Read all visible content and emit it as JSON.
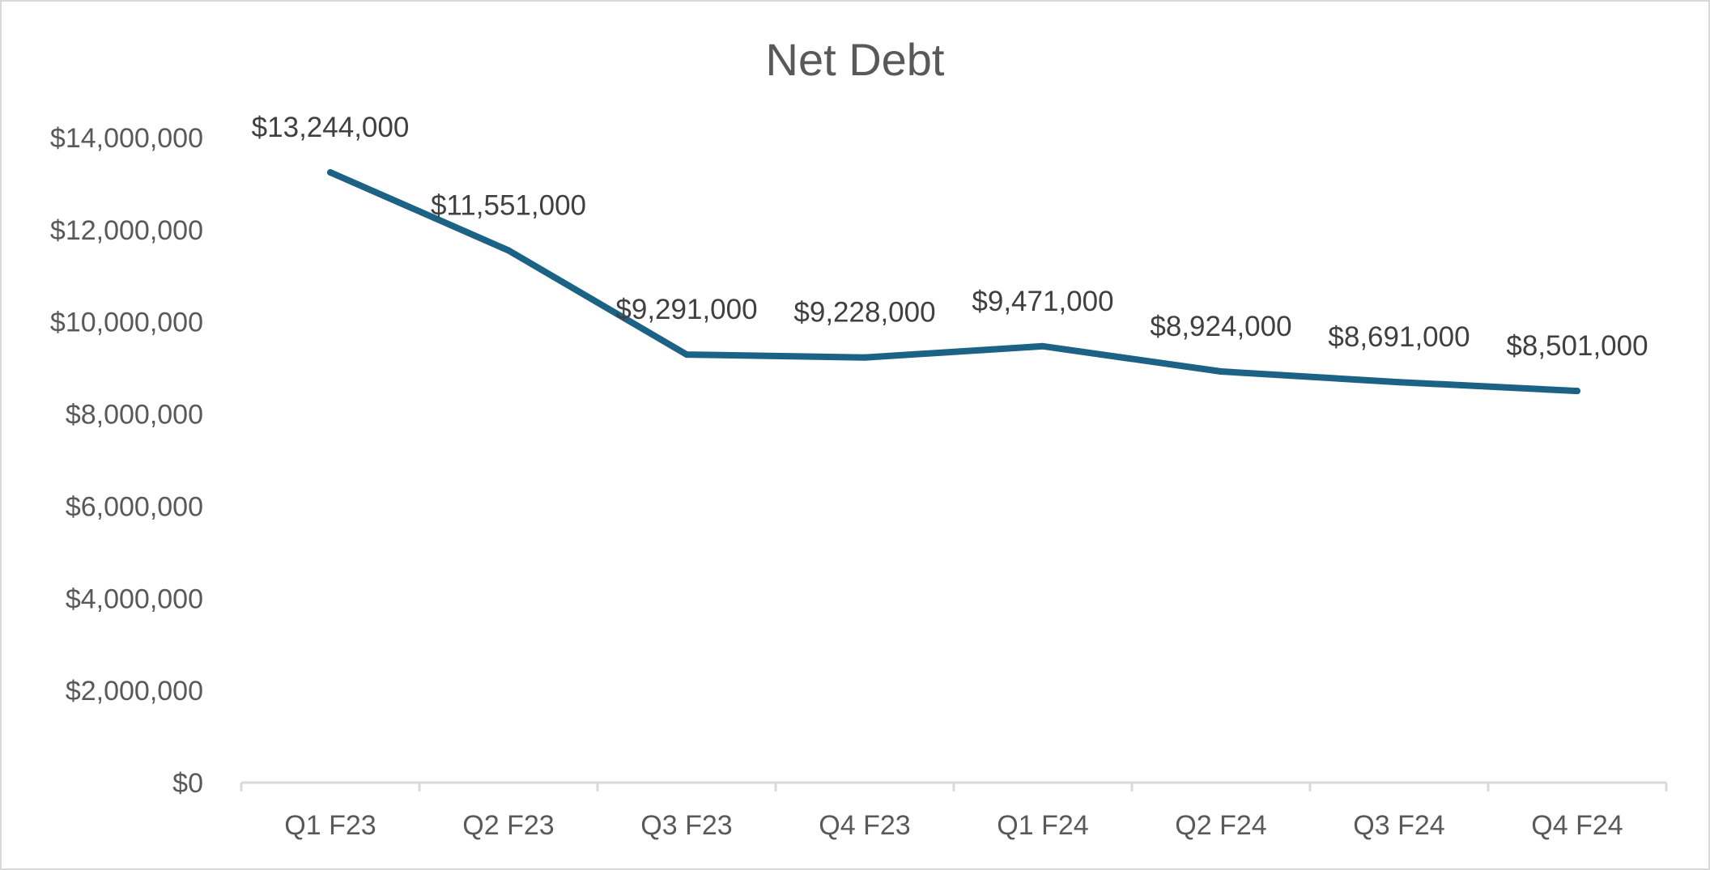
{
  "chart_data": {
    "type": "line",
    "title": "Net Debt",
    "xlabel": "",
    "ylabel": "",
    "categories": [
      "Q1 F23",
      "Q2 F23",
      "Q3 F23",
      "Q4 F23",
      "Q1 F24",
      "Q2 F24",
      "Q3 F24",
      "Q4 F24"
    ],
    "series": [
      {
        "values": [
          13244000,
          11551000,
          9291000,
          9228000,
          9471000,
          8924000,
          8691000,
          8501000
        ],
        "data_labels": [
          "$13,244,000",
          "$11,551,000",
          "$9,291,000",
          "$9,228,000",
          "$9,471,000",
          "$8,924,000",
          "$8,691,000",
          "$8,501,000"
        ],
        "color": "#1b6284"
      }
    ],
    "ylim": [
      0,
      14000000
    ],
    "yticks": [
      0,
      2000000,
      4000000,
      6000000,
      8000000,
      10000000,
      12000000,
      14000000
    ],
    "ytick_labels": [
      "$0",
      "$2,000,000",
      "$4,000,000",
      "$6,000,000",
      "$8,000,000",
      "$10,000,000",
      "$12,000,000",
      "$14,000,000"
    ],
    "grid": false,
    "legend": "none"
  }
}
